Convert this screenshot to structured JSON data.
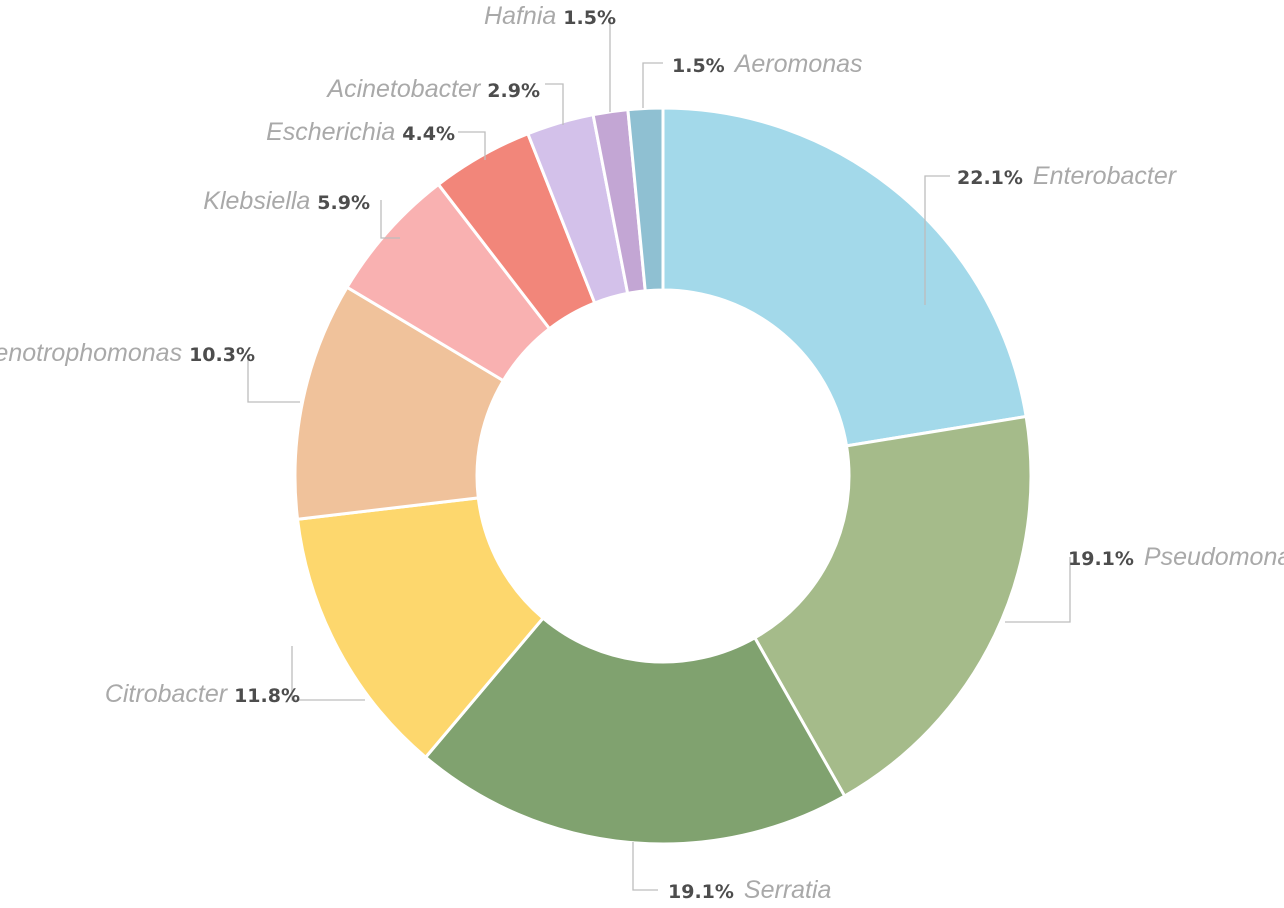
{
  "chart_data": {
    "type": "pie",
    "variant": "donut",
    "title": "",
    "slices": [
      {
        "label": "Enterobacter",
        "value": 22.1,
        "value_label": "22.1%",
        "color": "#a3d9ea"
      },
      {
        "label": "Pseudomonas",
        "value": 19.1,
        "value_label": "19.1%",
        "color": "#a5bb8a"
      },
      {
        "label": "Serratia",
        "value": 19.1,
        "value_label": "19.1%",
        "color": "#80a26f"
      },
      {
        "label": "Citrobacter",
        "value": 11.8,
        "value_label": "11.8%",
        "color": "#fdd76d"
      },
      {
        "label": "Stenotrophomonas",
        "value": 10.3,
        "value_label": "10.3%",
        "color": "#f0c29b"
      },
      {
        "label": "Klebsiella",
        "value": 5.9,
        "value_label": "5.9%",
        "color": "#f9b1b1"
      },
      {
        "label": "Escherichia",
        "value": 4.4,
        "value_label": "4.4%",
        "color": "#f2867a"
      },
      {
        "label": "Acinetobacter",
        "value": 2.9,
        "value_label": "2.9%",
        "color": "#d3c1ea"
      },
      {
        "label": "Hafnia",
        "value": 1.5,
        "value_label": "1.5%",
        "color": "#c3a6d4"
      },
      {
        "label": "Aeromonas",
        "value": 1.5,
        "value_label": "1.5%",
        "color": "#8fc0d2"
      }
    ],
    "legend": "none"
  }
}
